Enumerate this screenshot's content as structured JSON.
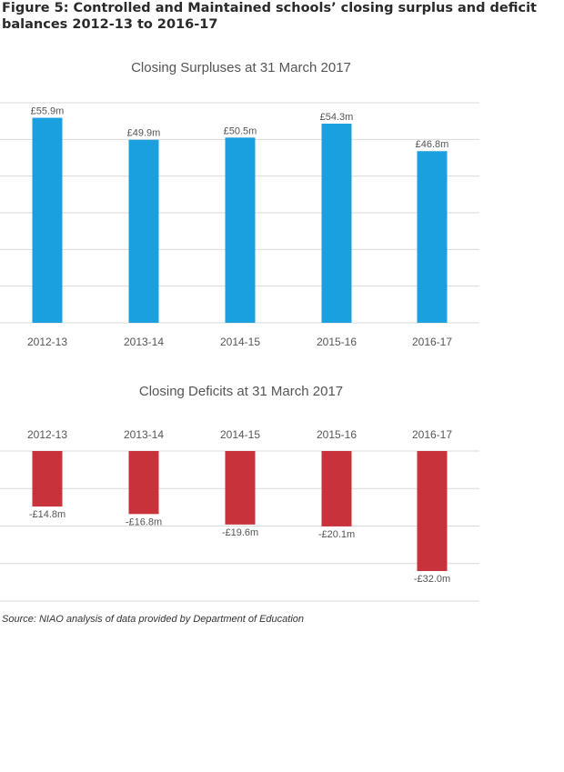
{
  "figure": {
    "title_line1": "Figure 5: Controlled and Maintained schools’ closing surplus and deficit",
    "title_line2": "balances 2012-13 to 2016-17",
    "source": "Source: NIAO analysis of data provided by Department of Education"
  },
  "colors": {
    "surplus": "#1aa0de",
    "deficit": "#c8323a",
    "grid": "#d9d9d9",
    "text": "#555555"
  },
  "chart_data": [
    {
      "type": "bar",
      "title": "Closing Surpluses at 31 March 2017",
      "categories": [
        "2012-13",
        "2013-14",
        "2014-15",
        "2015-16",
        "2016-17"
      ],
      "values": [
        55.9,
        49.9,
        50.5,
        54.3,
        46.8
      ],
      "labels": [
        "£55.9m",
        "£49.9m",
        "£50.5m",
        "£54.3m",
        "£46.8m"
      ],
      "ylim": [
        0,
        60
      ],
      "gridlines": [
        0,
        10,
        20,
        30,
        40,
        50,
        60
      ],
      "xlabel": "",
      "ylabel": "",
      "grid": true
    },
    {
      "type": "bar",
      "title": "Closing Deficits at 31 March 2017",
      "categories": [
        "2012-13",
        "2013-14",
        "2014-15",
        "2015-16",
        "2016-17"
      ],
      "values": [
        -14.8,
        -16.8,
        -19.6,
        -20.1,
        -32.0
      ],
      "labels": [
        "-£14.8m",
        "-£16.8m",
        "-£19.6m",
        "-£20.1m",
        "-£32.0m"
      ],
      "ylim": [
        -40,
        0
      ],
      "gridlines": [
        0,
        -10,
        -20,
        -30,
        -40
      ],
      "xlabel": "",
      "ylabel": "",
      "grid": true
    }
  ]
}
